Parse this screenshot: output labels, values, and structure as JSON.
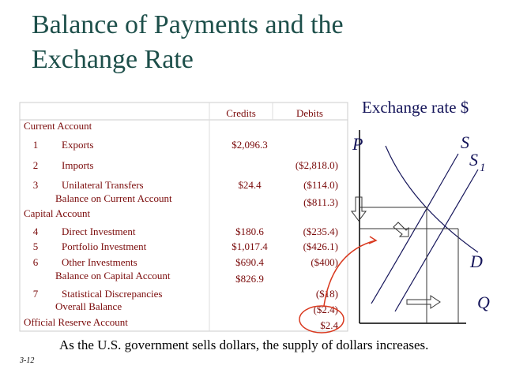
{
  "header": {
    "title_lines": [
      "Balance of Payments and the",
      "Exchange Rate"
    ]
  },
  "table": {
    "columns": [
      "Credits",
      "Debits"
    ],
    "rows": [
      {
        "kind": "section",
        "label": "Current Account"
      },
      {
        "kind": "item",
        "number": "1",
        "label": "Exports",
        "credit": "$2,096.3"
      },
      {
        "kind": "item",
        "number": "2",
        "label": "Imports",
        "debit": "($2,818.0)"
      },
      {
        "kind": "item",
        "number": "3",
        "label": "Unilateral Transfers",
        "credit": "$24.4",
        "debit": "($114.0)"
      },
      {
        "kind": "subtotal",
        "label": "Balance on Current Account",
        "debit": "($811.3)"
      },
      {
        "kind": "section",
        "label": "Capital Account"
      },
      {
        "kind": "item",
        "number": "4",
        "label": "Direct Investment",
        "credit": "$180.6",
        "debit": "($235.4)"
      },
      {
        "kind": "item",
        "number": "5",
        "label": "Portfolio Investment",
        "credit": "$1,017.4",
        "debit": "($426.1)"
      },
      {
        "kind": "item",
        "number": "6",
        "label": "Other Investments",
        "credit": "$690.4",
        "debit": "($400)"
      },
      {
        "kind": "subtotal",
        "label": "Balance on Capital Account",
        "credit": "$826.9"
      },
      {
        "kind": "item",
        "number": "7",
        "label": "Statistical Discrepancies",
        "debit": "($18)"
      },
      {
        "kind": "subtotal",
        "label": "Overall Balance",
        "debit": "($2.4)"
      },
      {
        "kind": "section",
        "label": "Official Reserve Account",
        "debit": "$2.4"
      }
    ]
  },
  "graph": {
    "y_axis_label": "Exchange rate $",
    "price_label": "P",
    "supply_label": "S",
    "supply_new_label": "S",
    "supply_new_subscript": "1",
    "demand_label": "D",
    "quantity_label": "Q"
  },
  "caption": "As the U.S. government sells dollars, the supply of dollars increases.",
  "slide_number": "3-12"
}
